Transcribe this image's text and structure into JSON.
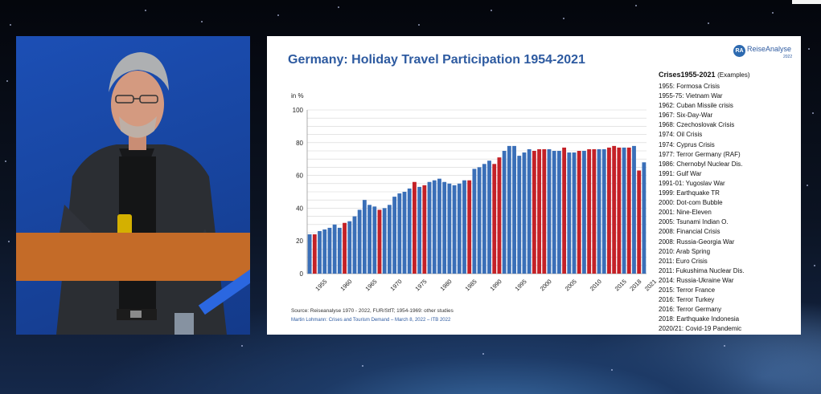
{
  "slide": {
    "title": "Germany: Holiday Travel Participation 1954-2021",
    "logo_mark": "RA",
    "logo_text": "ReiseAnalyse",
    "logo_sub": "2022",
    "source_line": "Source: Reiseanalyse 1970 - 2022, FUR/StfT; 1954-1969: other studies",
    "author_line": "Martin Lohmann: Crises and Tourism Demand – March 8, 2022 – ITB 2022"
  },
  "chart_data": {
    "type": "bar",
    "ylabel": "in %",
    "ylim": [
      0,
      100
    ],
    "yticks": [
      0,
      20,
      40,
      60,
      80,
      100
    ],
    "grid": true,
    "xticks": [
      "1955",
      "1960",
      "1965",
      "1970",
      "1975",
      "1980",
      "1985",
      "1990",
      "1995",
      "2000",
      "2005",
      "2010",
      "2015",
      "2018",
      "2021"
    ],
    "colors": {
      "normal": "#3a6fb8",
      "crisis": "#c42127"
    },
    "categories": [
      1954,
      1955,
      1956,
      1957,
      1958,
      1959,
      1960,
      1961,
      1962,
      1963,
      1964,
      1965,
      1966,
      1967,
      1968,
      1969,
      1970,
      1971,
      1972,
      1973,
      1974,
      1975,
      1976,
      1977,
      1978,
      1979,
      1980,
      1981,
      1982,
      1983,
      1984,
      1985,
      1986,
      1987,
      1988,
      1989,
      1990,
      1991,
      1992,
      1993,
      1994,
      1995,
      1996,
      1997,
      1998,
      1999,
      2000,
      2001,
      2002,
      2003,
      2004,
      2005,
      2006,
      2007,
      2008,
      2009,
      2010,
      2011,
      2012,
      2013,
      2014,
      2015,
      2016,
      2017,
      2018,
      2019,
      2020,
      2021
    ],
    "values": [
      24,
      24,
      26,
      27,
      28,
      30,
      28,
      31,
      32,
      35,
      39,
      45,
      42,
      41,
      39,
      40,
      42,
      47,
      49,
      50,
      52,
      56,
      53,
      54,
      56,
      57,
      58,
      56,
      55,
      54,
      55,
      57,
      57,
      64,
      65,
      67,
      69,
      67,
      71,
      75,
      78,
      78,
      72,
      74,
      76,
      75,
      76,
      76,
      76,
      75,
      75,
      77,
      74,
      74,
      75,
      75,
      76,
      76,
      76,
      76,
      77,
      78,
      77,
      77,
      77,
      78,
      63,
      68
    ],
    "crisis_years": [
      1955,
      1961,
      1968,
      1975,
      1977,
      1986,
      1991,
      1992,
      1999,
      2000,
      2001,
      2005,
      2008,
      2010,
      2011,
      2014,
      2015,
      2016,
      2018,
      2020
    ]
  },
  "crises": {
    "title": "Crises1955-2021",
    "subtitle": "(Examples)",
    "items": [
      "1955: Formosa Crisis",
      "1955-75: Vietnam War",
      "1962: Cuban Missile crisis",
      "1967: Six-Day-War",
      "1968: Czechoslovak Crisis",
      "1974: Oil Crisis",
      "1974: Cyprus Crisis",
      "1977: Terror Germany (RAF)",
      "1986: Chernobyl Nuclear Dis.",
      "1991: Gulf War",
      "1991-01: Yugoslav War",
      "1999: Earthquake TR",
      "2000: Dot-com Bubble",
      "2001: Nine-Eleven",
      "2005: Tsunami Indian O.",
      "2008: Financial Crisis",
      "2008: Russia-Georgia War",
      "2010: Arab Spring",
      "2011: Euro Crisis",
      "2011: Fukushima Nuclear Dis.",
      "2014: Russia-Ukraine War",
      "2015: Terror France",
      "2016: Terror Turkey",
      "2016: Terror Germany",
      "2018: Earthquake Indonesia",
      "2020/21: Covid-19 Pandemic"
    ]
  }
}
